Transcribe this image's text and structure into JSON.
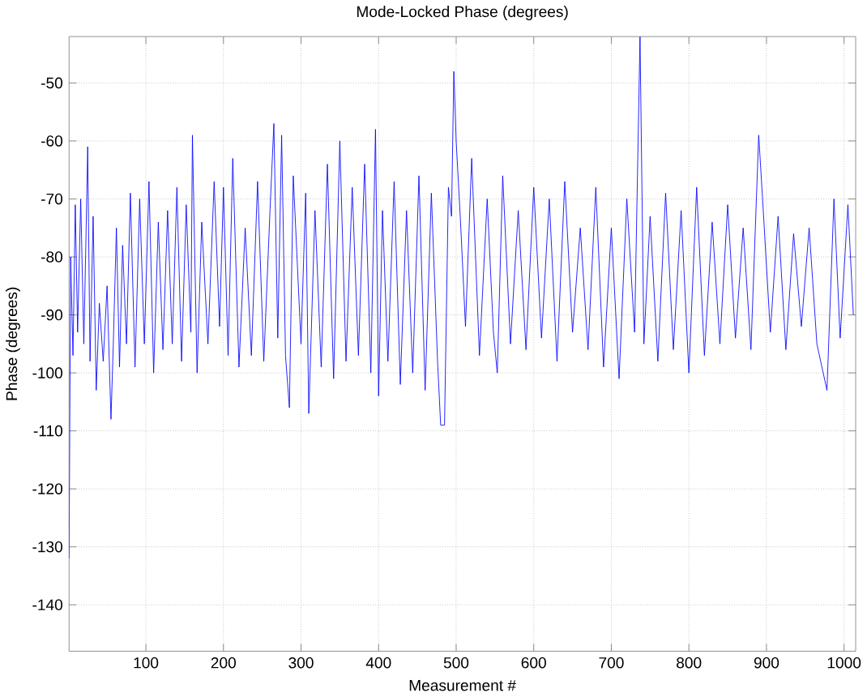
{
  "chart_data": {
    "type": "line",
    "title": "Mode-Locked Phase (degrees)",
    "xlabel": "Measurement #",
    "ylabel": "Phase (degrees)",
    "xlim": [
      1,
      1015
    ],
    "ylim": [
      -148,
      -42
    ],
    "xticks": [
      100,
      200,
      300,
      400,
      500,
      600,
      700,
      800,
      900,
      1000
    ],
    "yticks": [
      -50,
      -60,
      -70,
      -80,
      -90,
      -100,
      -110,
      -120,
      -130,
      -140
    ],
    "grid": true,
    "marker": "none",
    "line_style": "solid",
    "series": [
      {
        "color": "#0000ff",
        "x": [
          1,
          3,
          6,
          9,
          12,
          16,
          20,
          23,
          25,
          28,
          32,
          36,
          40,
          45,
          50,
          55,
          58,
          62,
          66,
          70,
          75,
          80,
          86,
          92,
          98,
          104,
          110,
          116,
          122,
          128,
          134,
          140,
          146,
          152,
          158,
          160,
          166,
          172,
          180,
          188,
          195,
          200,
          206,
          212,
          220,
          228,
          236,
          244,
          252,
          260,
          265,
          270,
          275,
          280,
          285,
          290,
          300,
          306,
          310,
          318,
          326,
          334,
          342,
          350,
          358,
          366,
          374,
          382,
          390,
          396,
          400,
          405,
          412,
          420,
          428,
          436,
          444,
          452,
          460,
          468,
          476,
          480,
          485,
          490,
          494,
          497,
          500,
          506,
          512,
          520,
          530,
          540,
          548,
          553,
          560,
          570,
          580,
          590,
          600,
          610,
          620,
          630,
          640,
          650,
          660,
          670,
          680,
          690,
          700,
          710,
          720,
          730,
          737,
          742,
          750,
          760,
          770,
          780,
          790,
          800,
          810,
          820,
          830,
          840,
          850,
          860,
          870,
          880,
          890,
          895,
          905,
          915,
          925,
          935,
          945,
          955,
          965,
          978,
          987,
          995,
          1005,
          1012
        ],
        "values": [
          -132,
          -80,
          -97,
          -71,
          -93,
          -70,
          -95,
          -75,
          -61,
          -98,
          -73,
          -103,
          -88,
          -98,
          -85,
          -108,
          -95,
          -75,
          -99,
          -78,
          -95,
          -69,
          -99,
          -70,
          -95,
          -67,
          -100,
          -74,
          -96,
          -72,
          -95,
          -68,
          -98,
          -71,
          -93,
          -59,
          -100,
          -74,
          -95,
          -67,
          -92,
          -68,
          -97,
          -63,
          -99,
          -75,
          -97,
          -67,
          -98,
          -72,
          -57,
          -94,
          -59,
          -97,
          -106,
          -66,
          -95,
          -69,
          -107,
          -72,
          -99,
          -64,
          -101,
          -60,
          -98,
          -68,
          -97,
          -64,
          -100,
          -58,
          -104,
          -72,
          -98,
          -67,
          -102,
          -72,
          -100,
          -66,
          -103,
          -69,
          -98,
          -109,
          -109,
          -68,
          -73,
          -48,
          -60,
          -75,
          -92,
          -63,
          -97,
          -70,
          -93,
          -100,
          -66,
          -95,
          -72,
          -96,
          -68,
          -94,
          -70,
          -98,
          -67,
          -93,
          -75,
          -96,
          -68,
          -99,
          -75,
          -101,
          -70,
          -93,
          -42,
          -95,
          -73,
          -98,
          -69,
          -96,
          -72,
          -100,
          -68,
          -97,
          -74,
          -95,
          -71,
          -94,
          -75,
          -96,
          -59,
          -70,
          -93,
          -73,
          -96,
          -76,
          -92,
          -75,
          -95,
          -103,
          -70,
          -94,
          -71,
          -90
        ]
      }
    ]
  }
}
